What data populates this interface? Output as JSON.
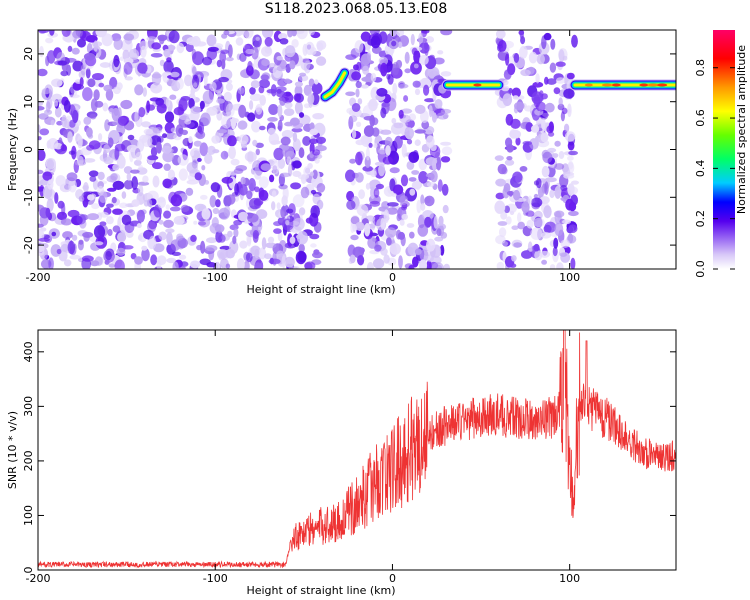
{
  "title": "S118.2023.068.05.13.E08",
  "chart_data": [
    {
      "type": "heatmap",
      "xlabel": "Height of straight line (km)",
      "ylabel": "Frequency (Hz)",
      "xlim": [
        -200,
        160
      ],
      "ylim": [
        -25,
        25
      ],
      "x_ticks": [
        -200,
        -100,
        0,
        100
      ],
      "y_ticks": [
        -20,
        -10,
        0,
        10,
        20
      ],
      "x_tick_labels": [
        "-200",
        "-100",
        "0",
        "100"
      ],
      "y_tick_labels": [
        "-20",
        "-10",
        "0",
        "10",
        "20"
      ],
      "data_gaps_km": [
        [
          -40,
          -24
        ],
        [
          31,
          60
        ],
        [
          103,
          160
        ]
      ],
      "signal_traces": [
        {
          "x": [
            -38,
            -34,
            -30,
            -27
          ],
          "freq": [
            11,
            12,
            14,
            16
          ]
        },
        {
          "x": [
            31,
            60
          ],
          "freq": [
            13.5,
            13.5
          ]
        },
        {
          "x": [
            103,
            160
          ],
          "freq": [
            13.5,
            13.5
          ]
        }
      ],
      "colorbar": {
        "label": "Normalized spectral amplitude",
        "range": [
          0,
          0.95
        ],
        "ticks": [
          0.0,
          0.2,
          0.4,
          0.6,
          0.8
        ],
        "tick_labels": [
          "0.0",
          "0.2",
          "0.4",
          "0.6",
          "0.8"
        ]
      },
      "grid": false
    },
    {
      "type": "line",
      "xlabel": "Height of straight line (km)",
      "ylabel": "SNR (10 * v/v)",
      "xlim": [
        -200,
        160
      ],
      "ylim": [
        0,
        440
      ],
      "x_ticks": [
        -200,
        -100,
        0,
        100
      ],
      "y_ticks": [
        0,
        100,
        200,
        300,
        400
      ],
      "x_tick_labels": [
        "-200",
        "-100",
        "0",
        "100"
      ],
      "y_tick_labels": [
        "0",
        "100",
        "200",
        "300",
        "400"
      ],
      "color": "#ee3333",
      "x": [
        -200,
        -150,
        -100,
        -60,
        -57,
        -50,
        -40,
        -30,
        -20,
        -10,
        0,
        10,
        20,
        30,
        40,
        50,
        60,
        70,
        80,
        90,
        95,
        98,
        100,
        102,
        105,
        110,
        120,
        130,
        140,
        150,
        160
      ],
      "y": [
        10,
        10,
        10,
        10,
        60,
        70,
        80,
        90,
        120,
        160,
        185,
        220,
        250,
        265,
        275,
        280,
        285,
        278,
        275,
        280,
        290,
        300,
        200,
        120,
        310,
        300,
        280,
        250,
        220,
        205,
        210
      ],
      "grid": false
    }
  ]
}
